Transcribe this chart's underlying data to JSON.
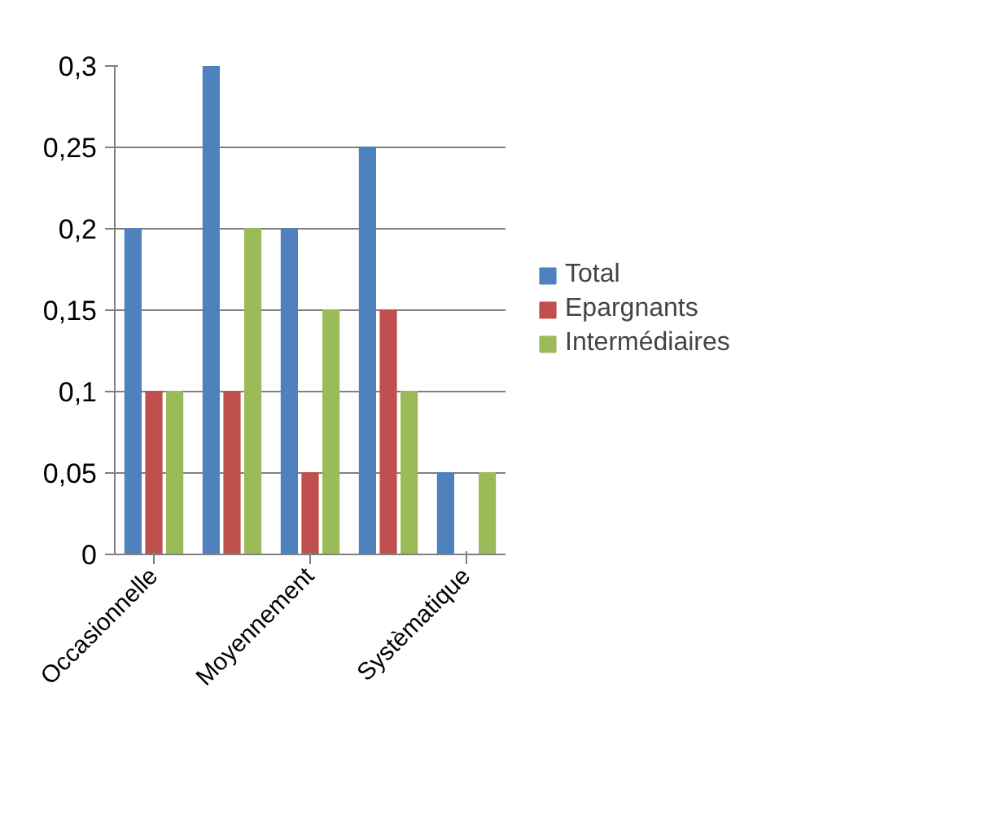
{
  "chart_data": {
    "type": "bar",
    "categories": [
      "Occasionnelle",
      null,
      "Moyennement",
      null,
      "Systèmatique"
    ],
    "series": [
      {
        "name": "Total",
        "color": "#4f81bd",
        "values": [
          0.2,
          0.3,
          0.2,
          0.25,
          0.05
        ]
      },
      {
        "name": "Epargnants",
        "color": "#c0504d",
        "values": [
          0.1,
          0.1,
          0.05,
          0.15,
          0
        ]
      },
      {
        "name": "Intermédiaires",
        "color": "#9bbb59",
        "values": [
          0.1,
          0.2,
          0.15,
          0.1,
          0.05
        ]
      }
    ],
    "ylim": [
      0,
      0.3
    ],
    "yticks": [
      {
        "value": 0,
        "label": "0"
      },
      {
        "value": 0.05,
        "label": "0,05"
      },
      {
        "value": 0.1,
        "label": "0,1"
      },
      {
        "value": 0.15,
        "label": "0,15"
      },
      {
        "value": 0.2,
        "label": "0,2"
      },
      {
        "value": 0.25,
        "label": "0,25"
      },
      {
        "value": 0.3,
        "label": "0,3"
      }
    ],
    "grid": "y",
    "legend": "right"
  }
}
